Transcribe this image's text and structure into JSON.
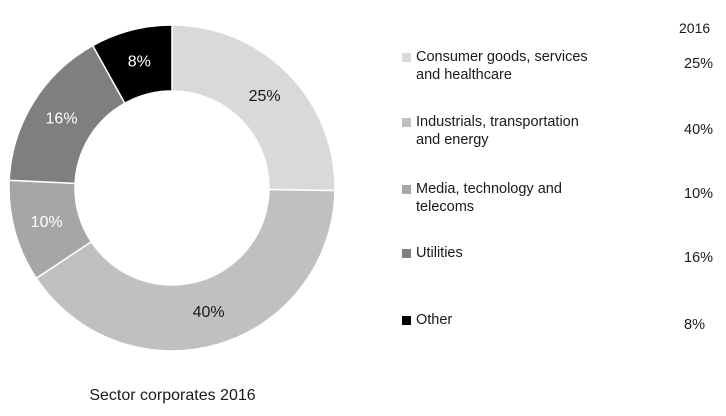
{
  "chart_data": {
    "type": "pie",
    "title": "Sector corporates 2016",
    "series_header": "2016",
    "hole": true,
    "slices": [
      {
        "label": "Consumer goods, services and healthcare",
        "value": 25,
        "value_label": "25%",
        "color": "#d9d9d9",
        "text_color": "#1a1a1a"
      },
      {
        "label": "Industrials, transportation and energy",
        "value": 40,
        "value_label": "40%",
        "color": "#c0c0c0",
        "text_color": "#1a1a1a"
      },
      {
        "label": "Media, technology and telecoms",
        "value": 10,
        "value_label": "10%",
        "color": "#a6a6a6",
        "text_color": "#ffffff"
      },
      {
        "label": "Utilities",
        "value": 16,
        "value_label": "16%",
        "color": "#7f7f7f",
        "text_color": "#ffffff"
      },
      {
        "label": "Other",
        "value": 8,
        "value_label": "8%",
        "color": "#000000",
        "text_color": "#ffffff"
      }
    ],
    "legend_labels": {
      "0": [
        "Consumer goods, services",
        "and healthcare"
      ],
      "1": [
        "Industrials, transportation",
        "and energy"
      ],
      "2": [
        "Media, technology and",
        "telecoms"
      ],
      "3": [
        "Utilities"
      ],
      "4": [
        "Other"
      ]
    }
  }
}
